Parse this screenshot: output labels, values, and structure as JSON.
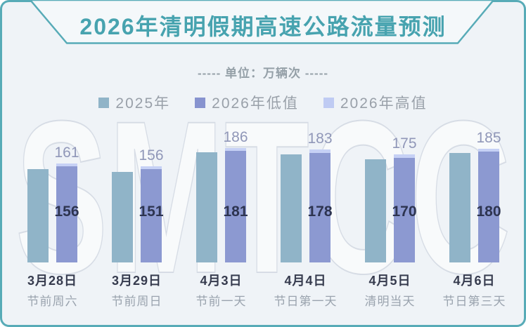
{
  "page": {
    "title": "2026年清明假期高速公路流量预测",
    "unit_label": "----- 单位：万辆次 -----",
    "watermark": "SMTCC",
    "colors": {
      "border": "#57abb7",
      "title": "#47a3af",
      "background": "#eff3f7",
      "bar_2025": "#90b4c8",
      "bar_2026_low": "#8c99d1",
      "bar_2026_high": "#c6d1f5",
      "high_label": "#9097b8",
      "low_label": "#2d3450",
      "date_label": "#363b4e",
      "desc_label": "#9aa3ae"
    }
  },
  "legend": {
    "items": [
      {
        "label": "2025年",
        "color": "#90b4c8"
      },
      {
        "label": "2026年低值",
        "color": "#8793cf"
      },
      {
        "label": "2026年高值",
        "color": "#bfcbf3"
      }
    ]
  },
  "chart_data": {
    "type": "bar",
    "title": "2026年清明假期高速公路流量预测",
    "unit": "万辆次",
    "categories": [
      {
        "date": "3月28日",
        "desc": "节前周六"
      },
      {
        "date": "3月29日",
        "desc": "节前周日"
      },
      {
        "date": "4月3日",
        "desc": "节前一天"
      },
      {
        "date": "4月4日",
        "desc": "节日第一天"
      },
      {
        "date": "4月5日",
        "desc": "清明当天"
      },
      {
        "date": "4月6日",
        "desc": "节日第三天"
      }
    ],
    "series": [
      {
        "name": "2025年",
        "values": [
          151,
          147,
          179,
          176,
          167,
          178
        ],
        "value_labels_shown": false,
        "note": "values estimated from unlabeled bar heights"
      },
      {
        "name": "2026年低值",
        "values": [
          156,
          151,
          181,
          178,
          170,
          180
        ],
        "value_labels_shown": true,
        "label_position": "inside"
      },
      {
        "name": "2026年高值",
        "values": [
          161,
          156,
          186,
          183,
          175,
          185
        ],
        "value_labels_shown": true,
        "label_position": "above",
        "rendered_as": "cap segment stacked on 低值 bar"
      }
    ],
    "ylim": [
      0,
      200
    ],
    "axes_hidden": true,
    "legend_position": "top"
  }
}
